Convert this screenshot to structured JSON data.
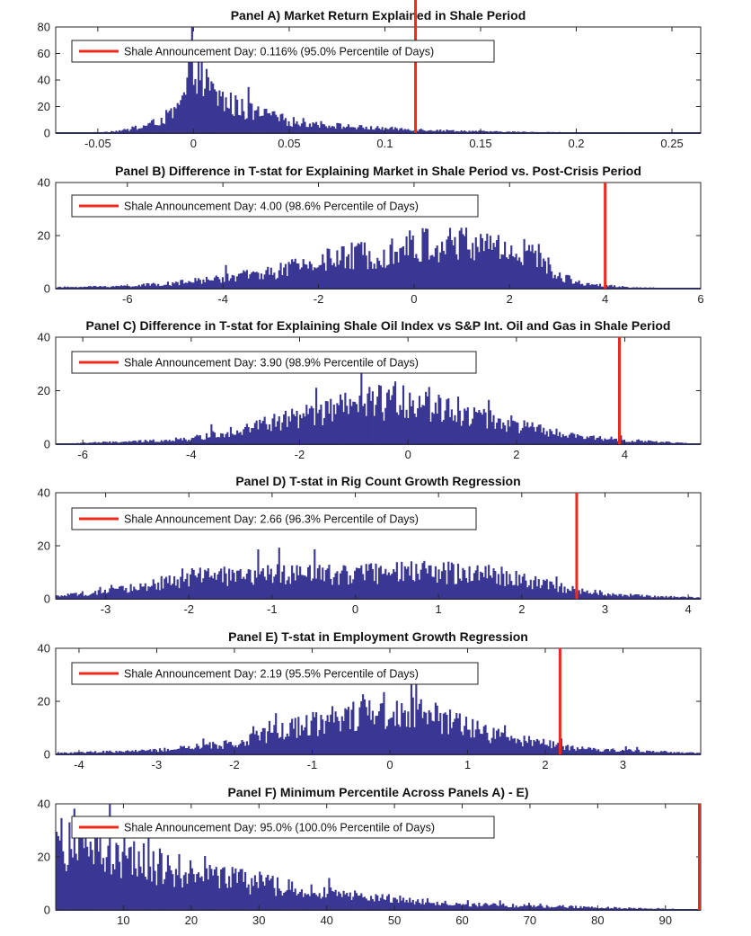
{
  "colors": {
    "bar": "#3a3694",
    "marker": "#ee2a1b",
    "axis": "#262626"
  },
  "chart_data": [
    {
      "type": "bar",
      "title": "Panel A) Market Return Explained in Shale Period",
      "xlim": [
        -0.072,
        0.265
      ],
      "ylim": [
        0,
        80
      ],
      "xticks": [
        -0.05,
        0,
        0.05,
        0.1,
        0.15,
        0.2,
        0.25
      ],
      "xtick_labels": [
        "-0.05",
        "0",
        "0.05",
        "0.1",
        "0.15",
        "0.2",
        "0.25"
      ],
      "yticks": [
        0,
        20,
        40,
        60,
        80
      ],
      "ytick_labels": [
        "0",
        "20",
        "40",
        "60",
        "80"
      ],
      "marker_x": 0.116,
      "legend": "Shale Announcement Day: 0.116% (95.0% Percentile of Days)",
      "hist": {
        "bins": 400,
        "points": [
          [
            -0.072,
            0
          ],
          [
            -0.06,
            0
          ],
          [
            -0.045,
            1
          ],
          [
            -0.03,
            3
          ],
          [
            -0.02,
            8
          ],
          [
            -0.01,
            15
          ],
          [
            -0.005,
            25
          ],
          [
            -0.002,
            48
          ],
          [
            0,
            65
          ],
          [
            0.003,
            45
          ],
          [
            0.008,
            32
          ],
          [
            0.015,
            25
          ],
          [
            0.025,
            18
          ],
          [
            0.035,
            14
          ],
          [
            0.05,
            9
          ],
          [
            0.07,
            6
          ],
          [
            0.09,
            4
          ],
          [
            0.11,
            3
          ],
          [
            0.13,
            2
          ],
          [
            0.16,
            1
          ],
          [
            0.2,
            0.5
          ],
          [
            0.265,
            0
          ]
        ]
      }
    },
    {
      "type": "bar",
      "title": "Panel B) Difference in T-stat for Explaining Market in Shale Period vs. Post-Crisis Period",
      "xlim": [
        -7.5,
        6
      ],
      "ylim": [
        0,
        40
      ],
      "xticks": [
        -6,
        -4,
        -2,
        0,
        2,
        4,
        6
      ],
      "xtick_labels": [
        "-6",
        "-4",
        "-2",
        "0",
        "2",
        "4",
        "6"
      ],
      "yticks": [
        0,
        20,
        40
      ],
      "ytick_labels": [
        "0",
        "20",
        "40"
      ],
      "marker_x": 4.0,
      "legend": "Shale Announcement Day: 4.00 (98.6% Percentile of Days)",
      "hist": {
        "bins": 400,
        "points": [
          [
            -7.5,
            0.5
          ],
          [
            -6,
            1
          ],
          [
            -5,
            2
          ],
          [
            -4,
            4
          ],
          [
            -3,
            6
          ],
          [
            -2,
            10
          ],
          [
            -1,
            13
          ],
          [
            0,
            16
          ],
          [
            1,
            17
          ],
          [
            2,
            15
          ],
          [
            2.6,
            12
          ],
          [
            3,
            5
          ],
          [
            3.5,
            2
          ],
          [
            4.5,
            0.5
          ],
          [
            6,
            0
          ]
        ]
      }
    },
    {
      "type": "bar",
      "title": "Panel C) Difference in T-stat for Explaining Shale Oil Index vs S&P Int. Oil and Gas in Shale Period",
      "xlim": [
        -6.5,
        5.4
      ],
      "ylim": [
        0,
        40
      ],
      "xticks": [
        -6,
        -4,
        -2,
        0,
        2,
        4
      ],
      "xtick_labels": [
        "-6",
        "-4",
        "-2",
        "0",
        "2",
        "4"
      ],
      "yticks": [
        0,
        20,
        40
      ],
      "ytick_labels": [
        "0",
        "20",
        "40"
      ],
      "marker_x": 3.9,
      "legend": "Shale Announcement Day: 3.90 (98.9% Percentile of Days)",
      "hist": {
        "bins": 400,
        "points": [
          [
            -6.5,
            0
          ],
          [
            -6,
            0.5
          ],
          [
            -5,
            1
          ],
          [
            -4,
            2
          ],
          [
            -3,
            6
          ],
          [
            -2,
            10
          ],
          [
            -1,
            14
          ],
          [
            0,
            17
          ],
          [
            1,
            12
          ],
          [
            2,
            7
          ],
          [
            3,
            3
          ],
          [
            4,
            1.5
          ],
          [
            5,
            0.5
          ],
          [
            5.4,
            0
          ]
        ]
      }
    },
    {
      "type": "bar",
      "title": "Panel D) T-stat in Rig Count Growth Regression",
      "xlim": [
        -3.6,
        4.15
      ],
      "ylim": [
        0,
        40
      ],
      "xticks": [
        -3,
        -2,
        -1,
        0,
        1,
        2,
        3,
        4
      ],
      "xtick_labels": [
        "-3",
        "-2",
        "-1",
        "0",
        "1",
        "2",
        "3",
        "4"
      ],
      "yticks": [
        0,
        20,
        40
      ],
      "ytick_labels": [
        "0",
        "20",
        "40"
      ],
      "marker_x": 2.66,
      "legend": "Shale Announcement Day: 2.66 (96.3% Percentile of Days)",
      "hist": {
        "bins": 400,
        "points": [
          [
            -3.6,
            1
          ],
          [
            -3,
            2.5
          ],
          [
            -2.5,
            5
          ],
          [
            -2,
            8
          ],
          [
            -1,
            9
          ],
          [
            0,
            9.5
          ],
          [
            1,
            10
          ],
          [
            1.5,
            10
          ],
          [
            2,
            7
          ],
          [
            2.5,
            4
          ],
          [
            3,
            2
          ],
          [
            3.5,
            1
          ],
          [
            4.15,
            0.5
          ]
        ]
      }
    },
    {
      "type": "bar",
      "title": "Panel E) T-stat in Employment Growth Regression",
      "xlim": [
        -4.3,
        4.0
      ],
      "ylim": [
        0,
        40
      ],
      "xticks": [
        -4,
        -3,
        -2,
        -1,
        0,
        1,
        2,
        3
      ],
      "xtick_labels": [
        "-4",
        "-3",
        "-2",
        "-1",
        "0",
        "1",
        "2",
        "3"
      ],
      "yticks": [
        0,
        20,
        40
      ],
      "ytick_labels": [
        "0",
        "20",
        "40"
      ],
      "marker_x": 2.19,
      "legend": "Shale Announcement Day: 2.19 (95.5% Percentile of Days)",
      "hist": {
        "bins": 400,
        "points": [
          [
            -4.3,
            0.5
          ],
          [
            -3,
            1.5
          ],
          [
            -2,
            4
          ],
          [
            -1.5,
            8
          ],
          [
            -1,
            12
          ],
          [
            -0.5,
            15
          ],
          [
            0,
            17
          ],
          [
            0.5,
            15
          ],
          [
            1,
            10
          ],
          [
            1.5,
            6
          ],
          [
            2,
            4
          ],
          [
            2.5,
            2
          ],
          [
            3,
            1.5
          ],
          [
            4,
            0.5
          ]
        ]
      }
    },
    {
      "type": "bar",
      "title": "Panel F) Minimum Percentile Across Panels A) - E)",
      "xlim": [
        0,
        95.2
      ],
      "ylim": [
        0,
        40
      ],
      "xticks": [
        10,
        20,
        30,
        40,
        50,
        60,
        70,
        80,
        90
      ],
      "xtick_labels": [
        "10",
        "20",
        "30",
        "40",
        "50",
        "60",
        "70",
        "80",
        "90"
      ],
      "yticks": [
        0,
        20,
        40
      ],
      "ytick_labels": [
        "0",
        "20",
        "40"
      ],
      "marker_x": 95.0,
      "legend": "Shale Announcement Day: 95.0% (100.0% Percentile of Days)",
      "hist": {
        "bins": 400,
        "points": [
          [
            0,
            27
          ],
          [
            5,
            22
          ],
          [
            10,
            19
          ],
          [
            20,
            14
          ],
          [
            30,
            10
          ],
          [
            40,
            6
          ],
          [
            50,
            4
          ],
          [
            60,
            2
          ],
          [
            70,
            1.5
          ],
          [
            80,
            1
          ],
          [
            90,
            0.3
          ],
          [
            95.2,
            0
          ]
        ]
      }
    }
  ]
}
